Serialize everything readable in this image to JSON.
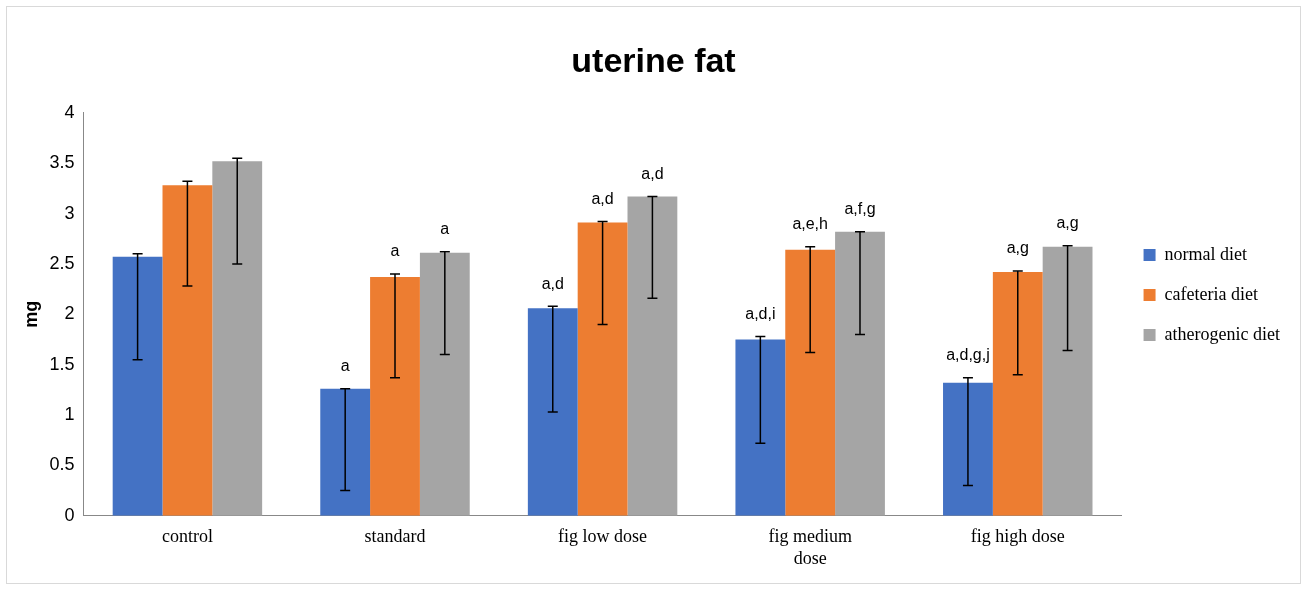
{
  "chart_data": {
    "type": "bar",
    "title": "uterine fat",
    "ylabel": "mg",
    "categories": [
      "control",
      "standard",
      "fig low dose",
      "fig medium dose",
      "fig high dose"
    ],
    "series": [
      {
        "name": "normal diet",
        "color": "#4472c4",
        "values": [
          2.57,
          1.26,
          2.06,
          1.75,
          1.32
        ],
        "errors": [
          [
            1.55,
            2.6
          ],
          [
            0.25,
            1.26
          ],
          [
            1.03,
            2.08
          ],
          [
            0.72,
            1.78
          ],
          [
            0.3,
            1.37
          ]
        ],
        "value_labels": [
          null,
          "a",
          "a,d",
          "a,d,i",
          "a,d,g,j"
        ]
      },
      {
        "name": "cafeteria diet",
        "color": "#ed7d31",
        "values": [
          3.28,
          2.37,
          2.91,
          2.64,
          2.42
        ],
        "errors": [
          [
            2.28,
            3.32
          ],
          [
            1.37,
            2.4
          ],
          [
            1.9,
            2.92
          ],
          [
            1.62,
            2.67
          ],
          [
            1.4,
            2.43
          ]
        ],
        "value_labels": [
          null,
          "a",
          "a,d",
          "a,e,h",
          "a,g"
        ]
      },
      {
        "name": "atherogenic diet",
        "color": "#a5a5a5",
        "values": [
          3.52,
          2.61,
          3.17,
          2.82,
          2.67
        ],
        "errors": [
          [
            2.5,
            3.55
          ],
          [
            1.6,
            2.62
          ],
          [
            2.16,
            3.17
          ],
          [
            1.8,
            2.82
          ],
          [
            1.64,
            2.68
          ]
        ],
        "value_labels": [
          null,
          "a",
          "a,d",
          "a,f,g",
          "a,g"
        ]
      }
    ],
    "ylim": [
      0,
      4
    ],
    "yticks": [
      0,
      0.5,
      1,
      1.5,
      2,
      2.5,
      3,
      3.5,
      4
    ],
    "grid": false,
    "legend": "right"
  }
}
